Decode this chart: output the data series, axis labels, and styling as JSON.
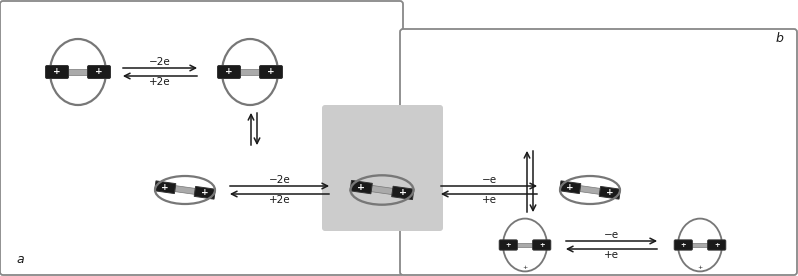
{
  "fig_width": 7.98,
  "fig_height": 2.76,
  "dpi": 100,
  "bg_color": "#ffffff",
  "line_color": "#1a1a1a",
  "gray_color": "#cccccc",
  "panel_edge": "#888888",
  "molecule_gray": "#aaaaaa",
  "molecule_dark": "#1a1a1a",
  "panel_a_label": "a",
  "panel_b_label": "b",
  "arrow_minus2e": "−2e",
  "arrow_plus2e": "+2e",
  "arrow_minus1e": "−e",
  "arrow_plus1e": "+e"
}
